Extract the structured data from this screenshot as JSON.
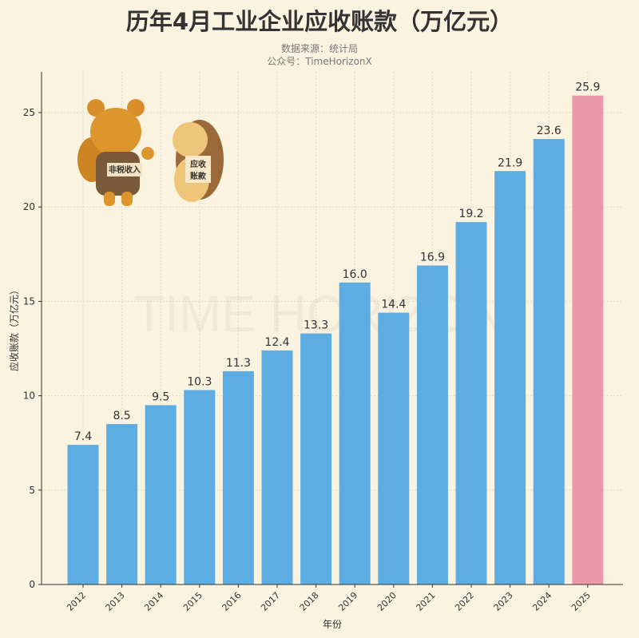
{
  "title": "历年4月工业企业应收账款（万亿元）",
  "subtitle_source": "数据来源：统计局",
  "subtitle_account": "公众号：TimeHorizonX",
  "watermark": "TIME HORIZON",
  "mascot": {
    "bear_label": "非税收入",
    "hedgehog_label": "应收账款"
  },
  "colors": {
    "background": "#faf3e0",
    "bar": "#5dade2",
    "highlight_bar": "#e899aa",
    "text": "#333333"
  },
  "chart_data": {
    "type": "bar",
    "title": "历年4月工业企业应收账款（万亿元）",
    "xlabel": "年份",
    "ylabel": "应收账款（万亿元）",
    "categories": [
      "2012",
      "2013",
      "2014",
      "2015",
      "2016",
      "2017",
      "2018",
      "2019",
      "2020",
      "2021",
      "2022",
      "2023",
      "2024",
      "2025"
    ],
    "values": [
      7.4,
      8.5,
      9.5,
      10.3,
      11.3,
      12.4,
      13.3,
      16.0,
      14.4,
      16.9,
      19.2,
      21.9,
      23.6,
      25.9
    ],
    "highlight": "2025",
    "ylim": [
      0,
      27
    ],
    "yticks": [
      0,
      5,
      10,
      15,
      20,
      25
    ],
    "grid": true,
    "legend": "none"
  }
}
